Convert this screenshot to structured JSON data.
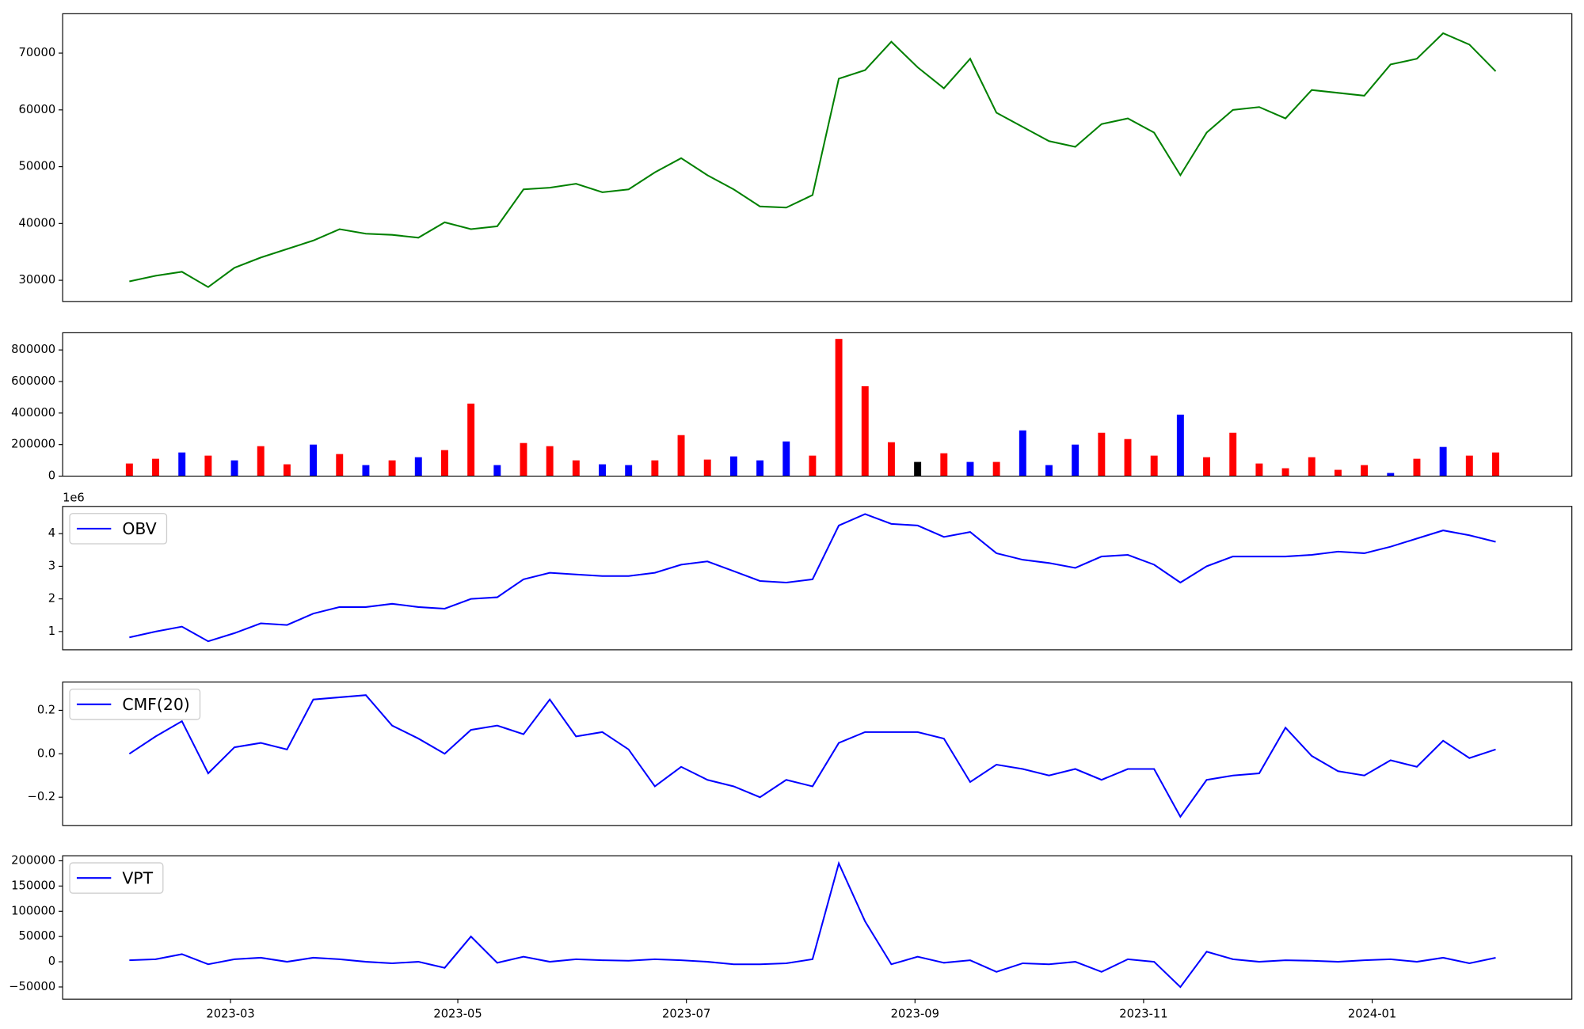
{
  "chart_data": [
    {
      "type": "line",
      "series": [
        {
          "color": "#008000",
          "values": [
            29800,
            30800,
            31500,
            28800,
            32200,
            34000,
            35500,
            37000,
            39000,
            38200,
            38000,
            37500,
            40200,
            39000,
            39500,
            46000,
            46300,
            47000,
            45500,
            46000,
            49000,
            51500,
            48500,
            46000,
            43000,
            42800,
            45000,
            65500,
            67000,
            72000,
            67500,
            63800,
            69000,
            59500,
            57000,
            54500,
            53500,
            57500,
            58500,
            56000,
            48500,
            56000,
            60000,
            60500,
            58500,
            63500,
            63000,
            62500,
            68000,
            69000,
            73500,
            71500,
            66800
          ]
        }
      ],
      "ylim": [
        26270,
        76930
      ],
      "yticks": [
        30000,
        40000,
        50000,
        60000,
        70000
      ]
    },
    {
      "type": "bar",
      "values": [
        80000,
        110000,
        150000,
        130000,
        100000,
        190000,
        75000,
        200000,
        140000,
        70000,
        100000,
        120000,
        165000,
        460000,
        70000,
        210000,
        190000,
        100000,
        75000,
        70000,
        100000,
        260000,
        105000,
        125000,
        100000,
        220000,
        130000,
        870000,
        570000,
        215000,
        90000,
        145000,
        90000,
        90000,
        290000,
        70000,
        200000,
        275000,
        235000,
        130000,
        390000,
        120000,
        275000,
        80000,
        50000,
        120000,
        40000,
        70000,
        20000,
        110000,
        185000,
        130000,
        150000
      ],
      "colors": [
        "#ff0000",
        "#ff0000",
        "#0000ff",
        "#ff0000",
        "#0000ff",
        "#ff0000",
        "#ff0000",
        "#0000ff",
        "#ff0000",
        "#0000ff",
        "#ff0000",
        "#0000ff",
        "#ff0000",
        "#ff0000",
        "#0000ff",
        "#ff0000",
        "#ff0000",
        "#ff0000",
        "#0000ff",
        "#0000ff",
        "#ff0000",
        "#ff0000",
        "#ff0000",
        "#0000ff",
        "#0000ff",
        "#0000ff",
        "#ff0000",
        "#ff0000",
        "#ff0000",
        "#ff0000",
        "#000000",
        "#ff0000",
        "#0000ff",
        "#ff0000",
        "#0000ff",
        "#0000ff",
        "#0000ff",
        "#ff0000",
        "#ff0000",
        "#ff0000",
        "#0000ff",
        "#ff0000",
        "#ff0000",
        "#ff0000",
        "#ff0000",
        "#ff0000",
        "#ff0000",
        "#ff0000",
        "#0000ff",
        "#ff0000",
        "#0000ff",
        "#ff0000",
        "#ff0000"
      ],
      "ylim": [
        0,
        909000
      ],
      "yticks": [
        0,
        200000,
        400000,
        600000,
        800000
      ]
    },
    {
      "type": "line",
      "series": [
        {
          "name": "OBV",
          "color": "#0000ff",
          "values": [
            820000,
            1000000,
            1150000,
            700000,
            950000,
            1250000,
            1200000,
            1550000,
            1750000,
            1750000,
            1850000,
            1750000,
            1700000,
            2000000,
            2050000,
            2600000,
            2800000,
            2750000,
            2700000,
            2700000,
            2800000,
            3050000,
            3150000,
            2850000,
            2550000,
            2500000,
            2600000,
            4250000,
            4600000,
            4300000,
            4250000,
            3900000,
            4050000,
            3400000,
            3200000,
            3100000,
            2950000,
            3300000,
            3350000,
            3050000,
            2500000,
            3000000,
            3300000,
            3300000,
            3300000,
            3350000,
            3450000,
            3400000,
            3600000,
            3850000,
            4100000,
            3950000,
            3750000
          ]
        }
      ],
      "offset_label": "1e6",
      "legend": "upper left",
      "ylim": [
        440000,
        4835000
      ],
      "yticks": [
        {
          "value": 1000000,
          "label": "1"
        },
        {
          "value": 2000000,
          "label": "2"
        },
        {
          "value": 3000000,
          "label": "3"
        },
        {
          "value": 4000000,
          "label": "4"
        }
      ]
    },
    {
      "type": "line",
      "series": [
        {
          "name": "CMF(20)",
          "color": "#0000ff",
          "values": [
            0.0,
            0.08,
            0.15,
            -0.09,
            0.03,
            0.05,
            0.02,
            0.25,
            0.26,
            0.27,
            0.13,
            0.07,
            0.0,
            0.11,
            0.13,
            0.09,
            0.25,
            0.08,
            0.1,
            0.02,
            -0.15,
            -0.06,
            -0.12,
            -0.15,
            -0.2,
            -0.12,
            -0.15,
            0.05,
            0.1,
            0.1,
            0.1,
            0.07,
            -0.13,
            -0.05,
            -0.07,
            -0.1,
            -0.07,
            -0.12,
            -0.07,
            -0.07,
            -0.29,
            -0.12,
            -0.1,
            -0.09,
            0.12,
            -0.01,
            -0.08,
            -0.1,
            -0.03,
            -0.06,
            0.06,
            -0.02,
            0.02
          ]
        }
      ],
      "legend": "upper left",
      "ylim": [
        -0.33,
        0.33
      ],
      "yticks": [
        {
          "value": -0.2,
          "label": "−0.2"
        },
        {
          "value": 0,
          "label": "0.0"
        },
        0.2
      ]
    },
    {
      "type": "line",
      "series": [
        {
          "name": "VPT",
          "color": "#0000ff",
          "values": [
            3000,
            5000,
            15000,
            -5000,
            5000,
            8000,
            0,
            8000,
            5000,
            0,
            -3000,
            0,
            -12000,
            50000,
            -2000,
            10000,
            0,
            5000,
            3000,
            2000,
            5000,
            3000,
            0,
            -5000,
            -5000,
            -3000,
            5000,
            195000,
            80000,
            -5000,
            10000,
            -2000,
            3000,
            -20000,
            -3000,
            -5000,
            0,
            -20000,
            5000,
            0,
            -50000,
            20000,
            5000,
            0,
            3000,
            2000,
            0,
            3000,
            5000,
            0,
            8000,
            -3000,
            8000
          ]
        }
      ],
      "legend": "upper left",
      "ylim": [
        -74000,
        210000
      ],
      "yticks": [
        {
          "value": -50000,
          "label": "−50000"
        },
        0,
        50000,
        100000,
        150000,
        200000
      ],
      "xlim": [
        -2.54,
        54.9
      ],
      "xticks": [
        {
          "value": 3.85,
          "label": "2023-03"
        },
        {
          "value": 12.5,
          "label": "2023-05"
        },
        {
          "value": 21.2,
          "label": "2023-07"
        },
        {
          "value": 29.9,
          "label": "2023-09"
        },
        {
          "value": 38.6,
          "label": "2023-11"
        },
        {
          "value": 47.3,
          "label": "2024-01"
        }
      ]
    }
  ]
}
